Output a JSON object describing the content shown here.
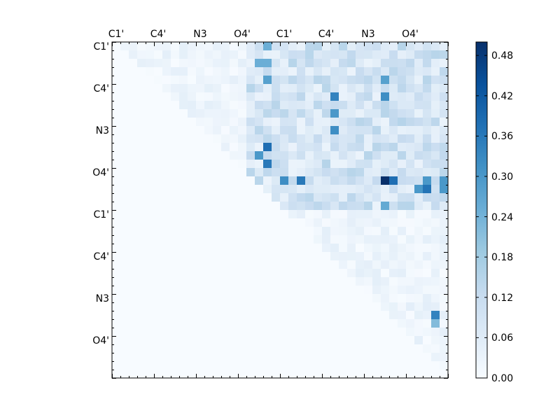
{
  "chart_data": {
    "type": "heatmap",
    "title": "",
    "xlabel": "",
    "ylabel": "",
    "x_tick_labels": [
      "C1'",
      "C4'",
      "N3",
      "O4'",
      "C1'",
      "C4'",
      "N3",
      "O4'"
    ],
    "y_tick_labels": [
      "C1'",
      "C4'",
      "N3",
      "O4'",
      "C1'",
      "C4'",
      "N3",
      "O4'"
    ],
    "grid_size": 40,
    "upper_triangular": true,
    "colormap": [
      "#f7fbff",
      "#deebf7",
      "#c6dbef",
      "#9ecae1",
      "#6baed6",
      "#4292c6",
      "#2171b5",
      "#08519c",
      "#08306b"
    ],
    "colorbar": {
      "min": 0.0,
      "max": 0.5,
      "tick_values": [
        0.0,
        0.06,
        0.12,
        0.18,
        0.24,
        0.3,
        0.36,
        0.42,
        0.48
      ],
      "tick_labels": [
        "0.00",
        "0.06",
        "0.12",
        "0.18",
        "0.24",
        "0.30",
        "0.36",
        "0.42",
        "0.48"
      ]
    },
    "notable_cells": [
      {
        "row": 16,
        "col": 32,
        "value": 0.5
      },
      {
        "row": 16,
        "col": 33,
        "value": 0.38
      },
      {
        "row": 16,
        "col": 20,
        "value": 0.32
      },
      {
        "row": 16,
        "col": 22,
        "value": 0.36
      },
      {
        "row": 16,
        "col": 37,
        "value": 0.3
      },
      {
        "row": 16,
        "col": 39,
        "value": 0.3
      },
      {
        "row": 17,
        "col": 36,
        "value": 0.3
      },
      {
        "row": 17,
        "col": 37,
        "value": 0.37
      },
      {
        "row": 17,
        "col": 39,
        "value": 0.3
      },
      {
        "row": 12,
        "col": 18,
        "value": 0.38
      },
      {
        "row": 14,
        "col": 18,
        "value": 0.36
      },
      {
        "row": 13,
        "col": 17,
        "value": 0.3
      },
      {
        "row": 0,
        "col": 18,
        "value": 0.25
      },
      {
        "row": 2,
        "col": 17,
        "value": 0.25
      },
      {
        "row": 2,
        "col": 18,
        "value": 0.25
      },
      {
        "row": 4,
        "col": 18,
        "value": 0.28
      },
      {
        "row": 4,
        "col": 32,
        "value": 0.28
      },
      {
        "row": 6,
        "col": 32,
        "value": 0.32
      },
      {
        "row": 6,
        "col": 26,
        "value": 0.34
      },
      {
        "row": 8,
        "col": 26,
        "value": 0.3
      },
      {
        "row": 10,
        "col": 26,
        "value": 0.32
      },
      {
        "row": 19,
        "col": 32,
        "value": 0.26
      },
      {
        "row": 32,
        "col": 38,
        "value": 0.34
      },
      {
        "row": 33,
        "col": 38,
        "value": 0.22
      }
    ]
  }
}
